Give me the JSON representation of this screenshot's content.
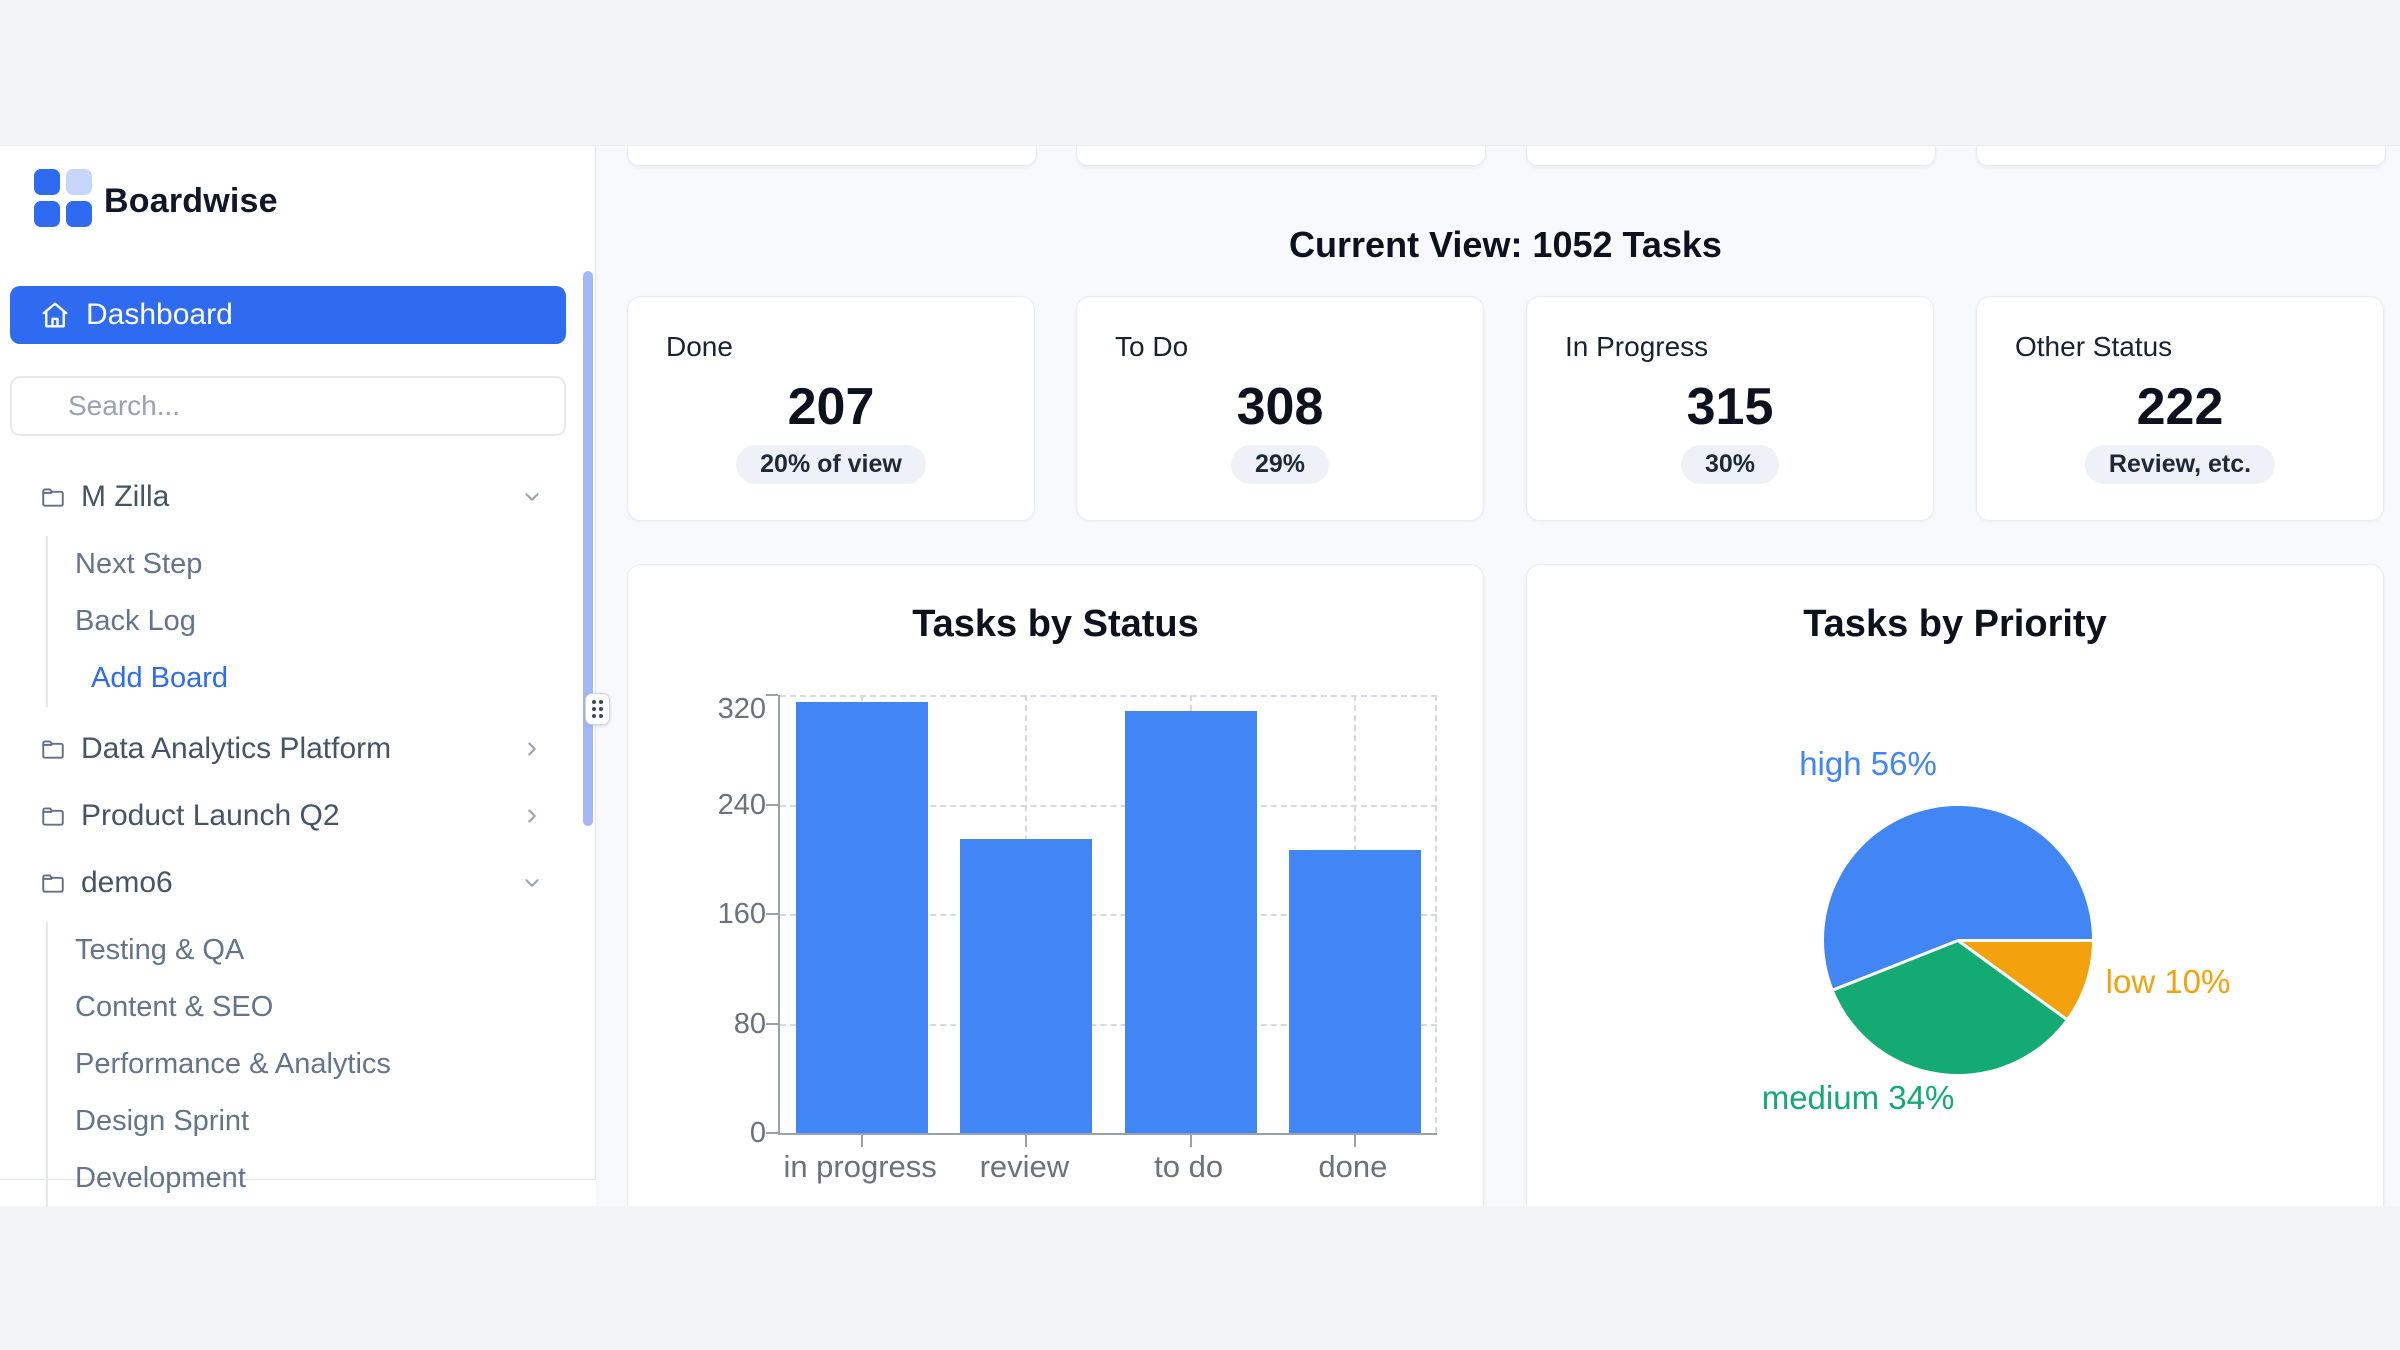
{
  "brand": {
    "name": "Boardwise"
  },
  "sidebar": {
    "dashboard_label": "Dashboard",
    "search_placeholder": "Search...",
    "sections": [
      {
        "label": "M Zilla",
        "state": "expanded",
        "children": [
          {
            "label": "Next Step",
            "type": "item"
          },
          {
            "label": "Back Log",
            "type": "item"
          },
          {
            "label": "Add Board",
            "type": "link"
          }
        ]
      },
      {
        "label": "Data Analytics Platform",
        "state": "collapsed",
        "children": []
      },
      {
        "label": "Product Launch Q2",
        "state": "collapsed",
        "children": []
      },
      {
        "label": "demo6",
        "state": "expanded",
        "children": [
          {
            "label": "Testing & QA",
            "type": "item"
          },
          {
            "label": "Content & SEO",
            "type": "item"
          },
          {
            "label": "Performance & Analytics",
            "type": "item"
          },
          {
            "label": "Design Sprint",
            "type": "item"
          },
          {
            "label": "Development",
            "type": "item"
          }
        ]
      }
    ]
  },
  "main": {
    "view_title": "Current View: 1052 Tasks",
    "stat_cards": [
      {
        "label": "Done",
        "value": "207",
        "badge": "20% of view"
      },
      {
        "label": "To Do",
        "value": "308",
        "badge": "29%"
      },
      {
        "label": "In Progress",
        "value": "315",
        "badge": "30%"
      },
      {
        "label": "Other Status",
        "value": "222",
        "badge": "Review, etc."
      }
    ]
  },
  "chart_data": [
    {
      "type": "bar",
      "title": "Tasks by Status",
      "categories": [
        "in progress",
        "review",
        "to do",
        "done"
      ],
      "values": [
        315,
        215,
        308,
        207
      ],
      "xlabel": "",
      "ylabel": "",
      "ylim": [
        0,
        320
      ],
      "y_ticks": [
        320,
        240,
        160,
        80,
        0
      ],
      "bar_color": "#4285F4",
      "grid": "dashed",
      "legend": "none"
    },
    {
      "type": "pie",
      "title": "Tasks by Priority",
      "slices": [
        {
          "label": "high",
          "pct": 56,
          "color": "#4285F4"
        },
        {
          "label": "medium",
          "pct": 34,
          "color": "#14AA74"
        },
        {
          "label": "low",
          "pct": 10,
          "color": "#F3A20D"
        }
      ],
      "start": "3-oclock",
      "direction": "counterclockwise",
      "legend": "labels-around-pie"
    }
  ],
  "colors": {
    "accent_blue": "#2E6BF0",
    "logo_light_blue": "#C6D6FC",
    "bar_blue": "#4285F4",
    "pie_green": "#14AA74",
    "pie_orange": "#F3A20D",
    "badge_bg": "#EEF1F7",
    "page_band_gray": "#F3F4F6",
    "main_bg": "#F8F9FC",
    "scrollbar_thumb": "#A6B7F8"
  }
}
